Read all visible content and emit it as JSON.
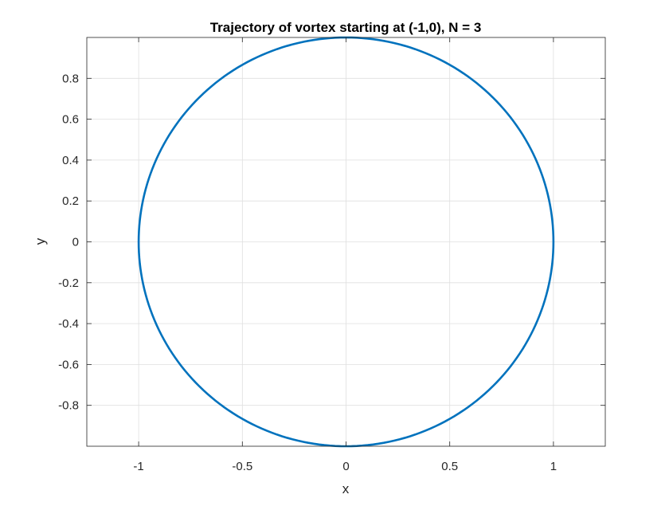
{
  "chart_data": {
    "type": "line",
    "title": "Trajectory of vortex starting at (-1,0), N = 3",
    "xlabel": "x",
    "ylabel": "y",
    "xlim": [
      -1.25,
      1.25
    ],
    "ylim": [
      -1,
      1
    ],
    "xticks": [
      -1,
      -0.5,
      0,
      0.5,
      1
    ],
    "xtick_labels": [
      "-1",
      "-0.5",
      "0",
      "0.5",
      "1"
    ],
    "yticks": [
      -0.8,
      -0.6,
      -0.4,
      -0.2,
      0,
      0.2,
      0.4,
      0.6,
      0.8
    ],
    "ytick_labels": [
      "-0.8",
      "-0.6",
      "-0.4",
      "-0.2",
      "0",
      "0.2",
      "0.4",
      "0.6",
      "0.8"
    ],
    "grid": true,
    "series": [
      {
        "color": "#0072BD",
        "shape": "circle",
        "center": [
          0,
          0
        ],
        "radius": 1,
        "start": [
          -1,
          0
        ]
      }
    ]
  }
}
